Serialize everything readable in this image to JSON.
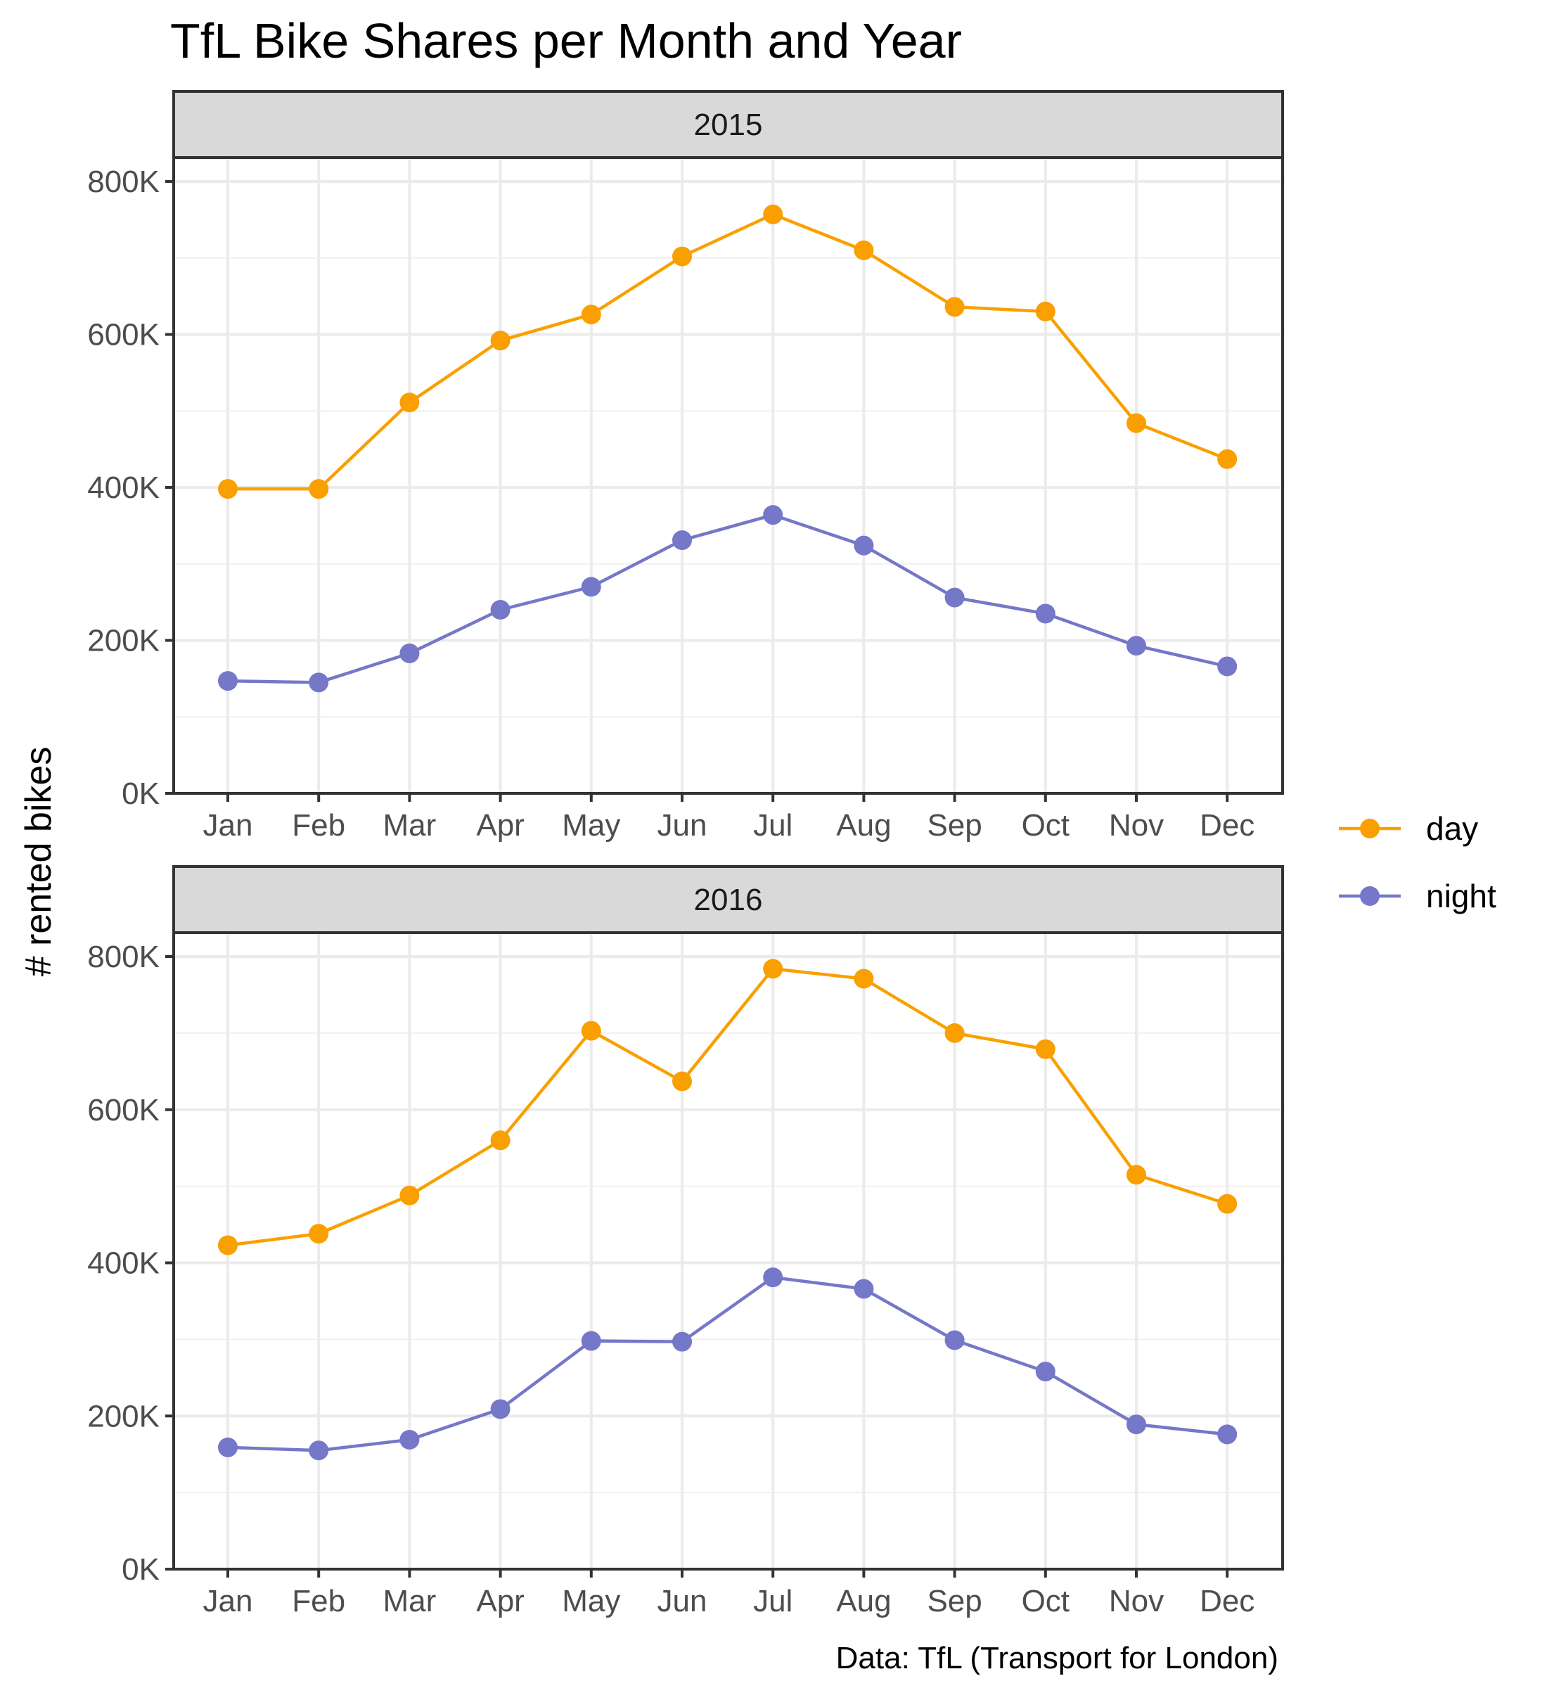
{
  "chart_data": {
    "type": "line",
    "title": "TfL Bike Shares per Month and Year",
    "ylabel": "# rented bikes",
    "xlabel": "",
    "caption": "Data: TfL (Transport for London)",
    "categories": [
      "Jan",
      "Feb",
      "Mar",
      "Apr",
      "May",
      "Jun",
      "Jul",
      "Aug",
      "Sep",
      "Oct",
      "Nov",
      "Dec"
    ],
    "y_ticks": [
      0,
      200000,
      400000,
      600000,
      800000
    ],
    "y_tick_labels": [
      "0K",
      "200K",
      "400K",
      "600K",
      "800K"
    ],
    "ylim": [
      0,
      800000
    ],
    "grid": true,
    "legend_placement": "right",
    "legend": [
      {
        "name": "day",
        "color": "#f9a000"
      },
      {
        "name": "night",
        "color": "#7577c8"
      }
    ],
    "panels": [
      {
        "label": "2015",
        "series": [
          {
            "name": "day",
            "values": [
              398000,
              398000,
              511000,
              592000,
              626000,
              702000,
              757000,
              710000,
              636000,
              630000,
              484000,
              437000
            ]
          },
          {
            "name": "night",
            "values": [
              147000,
              145000,
              183000,
              240000,
              270000,
              331000,
              364000,
              324000,
              256000,
              235000,
              193000,
              166000
            ]
          }
        ]
      },
      {
        "label": "2016",
        "series": [
          {
            "name": "day",
            "values": [
              423000,
              438000,
              488000,
              560000,
              703000,
              637000,
              784000,
              771000,
              700000,
              679000,
              515000,
              477000
            ]
          },
          {
            "name": "night",
            "values": [
              159000,
              155000,
              169000,
              209000,
              298000,
              297000,
              381000,
              366000,
              299000,
              258000,
              189000,
              176000
            ]
          }
        ]
      }
    ]
  }
}
